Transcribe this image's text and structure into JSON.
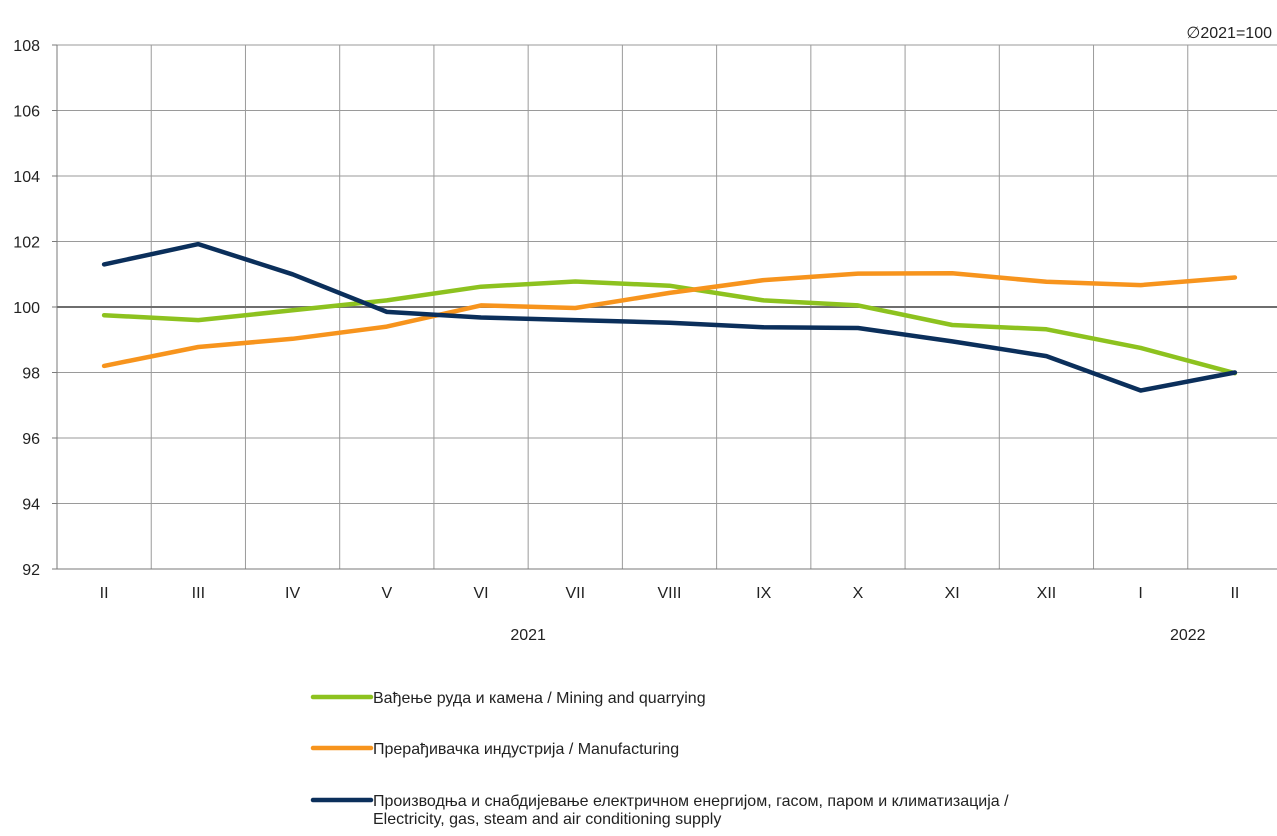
{
  "chart_data": {
    "type": "line",
    "base_note": "∅2021=100",
    "categories": [
      "II",
      "III",
      "IV",
      "V",
      "VI",
      "VII",
      "VIII",
      "IX",
      "X",
      "XI",
      "XII",
      "I",
      "II"
    ],
    "year_labels": [
      {
        "label": "2021",
        "category_index": 4.5
      },
      {
        "label": "2022",
        "category_index": 11.5
      }
    ],
    "ylim": [
      92,
      108
    ],
    "yticks": [
      92,
      94,
      96,
      98,
      100,
      102,
      104,
      106,
      108
    ],
    "reference_line": 100,
    "grid": true,
    "legend_position": "bottom",
    "series": [
      {
        "name_sr": "Вађење руда и камена",
        "name_en": " / Mining and quarrying",
        "color": "#8DC21F",
        "values": [
          99.75,
          99.6,
          99.9,
          100.2,
          100.62,
          100.78,
          100.65,
          100.2,
          100.05,
          99.45,
          99.32,
          98.75,
          97.98
        ]
      },
      {
        "name_sr": "Прерађивачка индустрија",
        "name_en": " / Manufacturing",
        "color": "#F7941D",
        "values": [
          98.2,
          98.78,
          99.03,
          99.4,
          100.05,
          99.97,
          100.43,
          100.82,
          101.02,
          101.03,
          100.77,
          100.67,
          100.9
        ]
      },
      {
        "name_sr": "Производња и снабдијевање електричном енергијом, гасом, паром и климатизација",
        "name_en": " / ",
        "name_en_line2": "Electricity, gas, steam and air conditioning supply",
        "color": "#0B2F5B",
        "values": [
          101.3,
          101.92,
          101.0,
          99.85,
          99.68,
          99.6,
          99.52,
          99.38,
          99.36,
          98.95,
          98.5,
          97.45,
          98.0
        ]
      }
    ]
  }
}
